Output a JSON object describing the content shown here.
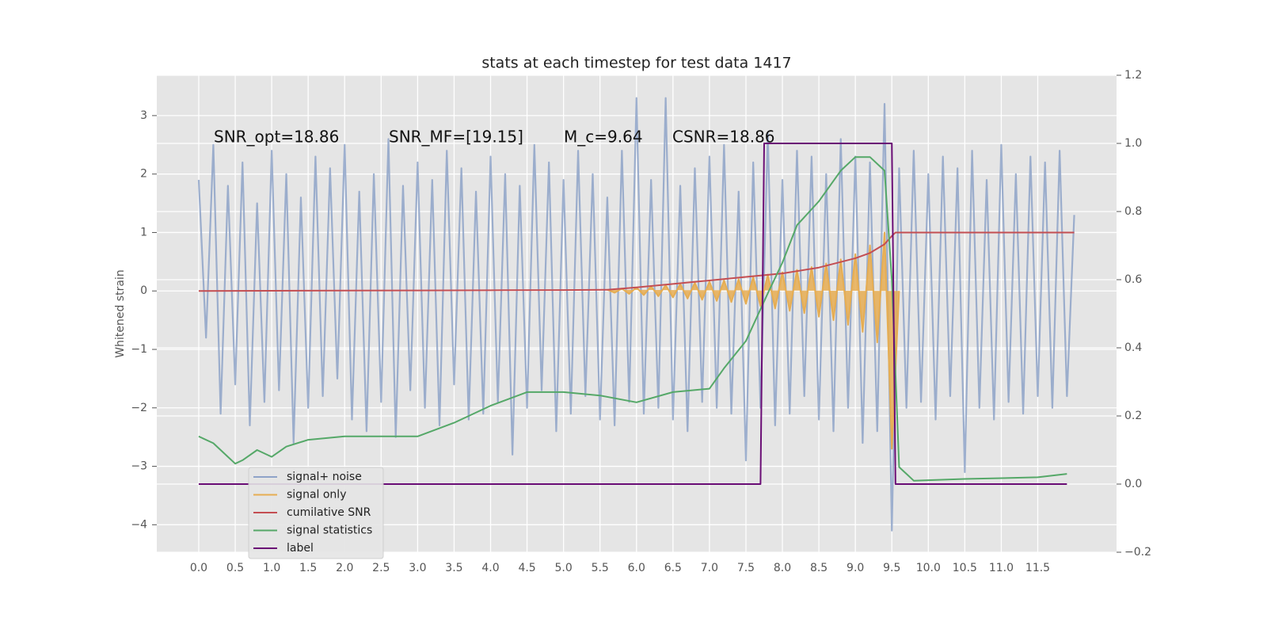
{
  "chart_data": {
    "type": "line",
    "title": "stats at each timestep for test data 1417",
    "ylabel": "Whitened strain",
    "annotations": [
      "SNR_opt=18.86",
      "SNR_MF=[19.15]",
      "M_c=9.64",
      "CSNR=18.86"
    ],
    "legend": "lower left",
    "grid": true,
    "background": "#e5e5e5",
    "xlim": [
      -0.575,
      12.58
    ],
    "xticks": [
      {
        "value": 0,
        "label": "0.0"
      },
      0.5,
      {
        "value": 1,
        "label": "1.0"
      },
      1.5,
      {
        "value": 2,
        "label": "2.0"
      },
      2.5,
      {
        "value": 3,
        "label": "3.0"
      },
      3.5,
      {
        "value": 4,
        "label": "4.0"
      },
      4.5,
      {
        "value": 5,
        "label": "5.0"
      },
      5.5,
      {
        "value": 6,
        "label": "6.0"
      },
      6.5,
      {
        "value": 7,
        "label": "7.0"
      },
      7.5,
      {
        "value": 8,
        "label": "8.0"
      },
      8.5,
      {
        "value": 9,
        "label": "9.0"
      },
      9.5,
      {
        "value": 10,
        "label": "10.0"
      },
      10.5,
      {
        "value": 11,
        "label": "11.0"
      },
      11.5
    ],
    "ylim": [
      -4.47,
      3.69
    ],
    "yticks": [
      {
        "value": -4,
        "label": "−4"
      },
      {
        "value": -3,
        "label": "−3"
      },
      {
        "value": -2,
        "label": "−2"
      },
      {
        "value": -1,
        "label": "−1"
      },
      0,
      1,
      2,
      3
    ],
    "y2lim": [
      -0.2,
      1.2
    ],
    "y2ticks": [
      {
        "value": -0.2,
        "label": "−0.2"
      },
      {
        "value": 0,
        "label": "0.0"
      },
      0.2,
      0.4,
      0.6,
      0.8,
      {
        "value": 1,
        "label": "1.0"
      },
      1.2
    ],
    "series": [
      {
        "name": "signal+ noise",
        "color": "#8ea3c8",
        "x": [
          0,
          0.1,
          0.2,
          0.3,
          0.4,
          0.5,
          0.6,
          0.7,
          0.8,
          0.9,
          1,
          1.1,
          1.2,
          1.3,
          1.4,
          1.5,
          1.6,
          1.7,
          1.8,
          1.9,
          2,
          2.1,
          2.2,
          2.3,
          2.4,
          2.5,
          2.6,
          2.7,
          2.8,
          2.9,
          3,
          3.1,
          3.2,
          3.3,
          3.4,
          3.5,
          3.6,
          3.7,
          3.8,
          3.9,
          4,
          4.1,
          4.2,
          4.3,
          4.4,
          4.5,
          4.6,
          4.7,
          4.8,
          4.9,
          5,
          5.1,
          5.2,
          5.3,
          5.4,
          5.5,
          5.6,
          5.7,
          5.8,
          5.9,
          6,
          6.1,
          6.2,
          6.3,
          6.4,
          6.5,
          6.6,
          6.7,
          6.8,
          6.9,
          7,
          7.1,
          7.2,
          7.3,
          7.4,
          7.5,
          7.6,
          7.7,
          7.8,
          7.9,
          8,
          8.1,
          8.2,
          8.3,
          8.4,
          8.5,
          8.6,
          8.7,
          8.8,
          8.9,
          9,
          9.1,
          9.2,
          9.3,
          9.4,
          9.5,
          9.6,
          9.7,
          9.8,
          9.9,
          10,
          10.1,
          10.2,
          10.3,
          10.4,
          10.5,
          10.6,
          10.7,
          10.8,
          10.9,
          11,
          11.1,
          11.2,
          11.3,
          11.4,
          11.5,
          11.6,
          11.7,
          11.8,
          11.9,
          12
        ],
        "values": [
          1.9,
          -0.8,
          2.5,
          -2.1,
          1.8,
          -1.6,
          2.2,
          -2.3,
          1.5,
          -1.9,
          2.4,
          -1.7,
          2.0,
          -2.6,
          1.6,
          -2.0,
          2.3,
          -1.8,
          2.1,
          -1.5,
          2.5,
          -2.2,
          1.7,
          -2.4,
          2.0,
          -1.9,
          2.6,
          -2.5,
          1.8,
          -1.7,
          2.2,
          -2.0,
          1.9,
          -2.3,
          2.4,
          -1.6,
          2.1,
          -2.2,
          1.7,
          -2.1,
          2.3,
          -1.9,
          2.0,
          -2.8,
          1.8,
          -2.0,
          2.5,
          -1.7,
          2.2,
          -2.4,
          1.9,
          -2.1,
          2.4,
          -1.8,
          2.0,
          -2.2,
          1.6,
          -2.3,
          2.4,
          -1.9,
          3.3,
          -2.1,
          1.9,
          -2.0,
          3.3,
          -2.2,
          1.8,
          -2.4,
          2.1,
          -1.9,
          2.3,
          -2.0,
          2.5,
          -2.1,
          1.7,
          -2.9,
          2.2,
          -2.0,
          2.7,
          -2.3,
          1.9,
          -2.1,
          2.4,
          -1.8,
          2.3,
          -2.2,
          2.0,
          -2.4,
          2.6,
          -2.0,
          2.3,
          -2.6,
          2.2,
          -2.4,
          3.2,
          -4.1,
          2.1,
          -2.0,
          2.4,
          -1.9,
          2.0,
          -2.2,
          2.3,
          -1.8,
          2.1,
          -3.1,
          2.4,
          -2.0,
          1.9,
          -2.2,
          2.5,
          -1.9,
          2.0,
          -2.1,
          2.3,
          -1.8,
          2.2,
          -2.0,
          2.4,
          -1.8,
          1.3
        ]
      },
      {
        "name": "signal only",
        "color": "#e6ad52",
        "x": [
          5.6,
          5.7,
          5.8,
          5.9,
          6,
          6.1,
          6.2,
          6.3,
          6.4,
          6.5,
          6.6,
          6.7,
          6.8,
          6.9,
          7,
          7.1,
          7.2,
          7.3,
          7.4,
          7.5,
          7.6,
          7.7,
          7.8,
          7.9,
          8,
          8.1,
          8.2,
          8.3,
          8.4,
          8.5,
          8.6,
          8.7,
          8.8,
          8.9,
          9,
          9.1,
          9.2,
          9.3,
          9.4,
          9.5,
          9.6
        ],
        "values": [
          0.02,
          -0.03,
          0.04,
          -0.05,
          0.06,
          -0.07,
          0.08,
          -0.09,
          0.1,
          -0.11,
          0.12,
          -0.13,
          0.14,
          -0.15,
          0.16,
          -0.17,
          0.18,
          -0.19,
          0.2,
          -0.22,
          0.24,
          -0.26,
          0.28,
          -0.3,
          0.32,
          -0.34,
          0.36,
          -0.38,
          0.41,
          -0.44,
          0.47,
          -0.5,
          0.54,
          -0.58,
          0.63,
          -0.7,
          0.78,
          -0.88,
          1.0,
          -2.7,
          0
        ]
      },
      {
        "name": "cumilative SNR",
        "color": "#c44e52",
        "x": [
          0,
          1,
          2,
          3,
          4,
          5,
          5.6,
          6,
          6.5,
          7,
          7.5,
          8,
          8.5,
          9,
          9.2,
          9.4,
          9.5,
          9.55,
          10,
          11,
          12
        ],
        "values": [
          0,
          0.003,
          0.006,
          0.009,
          0.012,
          0.015,
          0.02,
          0.06,
          0.12,
          0.18,
          0.24,
          0.3,
          0.4,
          0.56,
          0.65,
          0.8,
          0.94,
          1.0,
          1.0,
          1.0,
          1.0
        ]
      },
      {
        "name": "signal statistics",
        "color": "#55a868",
        "axis": "y2",
        "x": [
          0,
          0.2,
          0.4,
          0.5,
          0.6,
          0.8,
          1.0,
          1.2,
          1.5,
          2.0,
          2.5,
          3.0,
          3.5,
          4.0,
          4.5,
          5.0,
          5.5,
          6.0,
          6.5,
          7.0,
          7.2,
          7.5,
          7.8,
          8.0,
          8.2,
          8.5,
          8.8,
          9.0,
          9.2,
          9.4,
          9.5,
          9.6,
          9.8,
          10.5,
          11.5,
          11.9
        ],
        "values": [
          0.14,
          0.12,
          0.08,
          0.06,
          0.07,
          0.1,
          0.08,
          0.11,
          0.13,
          0.14,
          0.14,
          0.14,
          0.18,
          0.23,
          0.27,
          0.27,
          0.26,
          0.24,
          0.27,
          0.28,
          0.34,
          0.42,
          0.56,
          0.65,
          0.76,
          0.83,
          0.92,
          0.96,
          0.96,
          0.92,
          0.6,
          0.05,
          0.01,
          0.015,
          0.02,
          0.03
        ]
      },
      {
        "name": "label",
        "color": "#6a0d75",
        "axis": "y2",
        "x": [
          0,
          7.7,
          7.75,
          9.5,
          9.55,
          11.9
        ],
        "values": [
          0,
          0,
          1,
          1,
          0,
          0
        ]
      }
    ]
  }
}
